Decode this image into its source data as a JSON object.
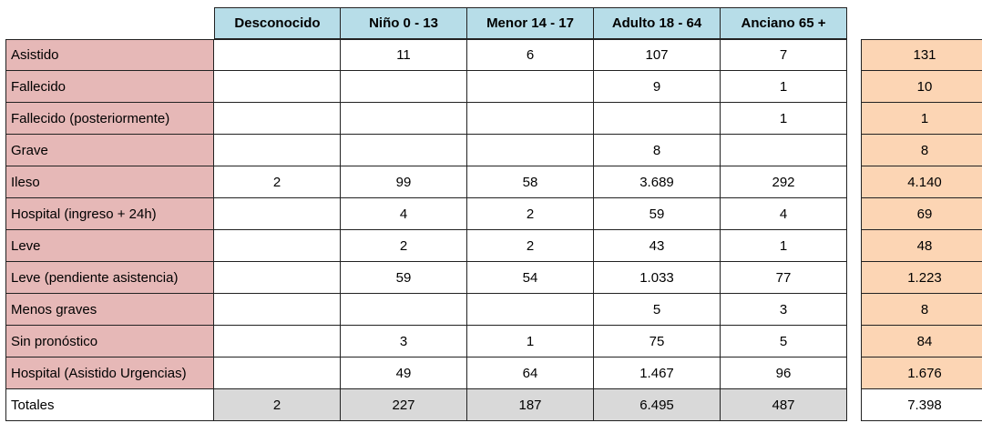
{
  "table": {
    "columns": [
      "Desconocido",
      "Niño 0 - 13",
      "Menor 14 - 17",
      "Adulto 18 - 64",
      "Anciano 65 +"
    ],
    "rows": [
      {
        "label": "Asistido",
        "values": [
          "",
          "11",
          "6",
          "107",
          "7"
        ],
        "total": "131"
      },
      {
        "label": "Fallecido",
        "values": [
          "",
          "",
          "",
          "9",
          "1"
        ],
        "total": "10"
      },
      {
        "label": "Fallecido (posteriormente)",
        "values": [
          "",
          "",
          "",
          "",
          "1"
        ],
        "total": "1"
      },
      {
        "label": "Grave",
        "values": [
          "",
          "",
          "",
          "8",
          ""
        ],
        "total": "8"
      },
      {
        "label": "Ileso",
        "values": [
          "2",
          "99",
          "58",
          "3.689",
          "292"
        ],
        "total": "4.140"
      },
      {
        "label": "Hospital (ingreso + 24h)",
        "values": [
          "",
          "4",
          "2",
          "59",
          "4"
        ],
        "total": "69"
      },
      {
        "label": "Leve",
        "values": [
          "",
          "2",
          "2",
          "43",
          "1"
        ],
        "total": "48"
      },
      {
        "label": "Leve (pendiente asistencia)",
        "values": [
          "",
          "59",
          "54",
          "1.033",
          "77"
        ],
        "total": "1.223"
      },
      {
        "label": "Menos graves",
        "values": [
          "",
          "",
          "",
          "5",
          "3"
        ],
        "total": "8"
      },
      {
        "label": "Sin pronóstico",
        "values": [
          "",
          "3",
          "1",
          "75",
          "5"
        ],
        "total": "84"
      },
      {
        "label": "Hospital (Asistido Urgencias)",
        "values": [
          "",
          "49",
          "64",
          "1.467",
          "96"
        ],
        "total": "1.676"
      }
    ],
    "footer": {
      "label": "Totales",
      "values": [
        "2",
        "227",
        "187",
        "6.495",
        "487"
      ],
      "total": "7.398"
    }
  },
  "colors": {
    "header_bg": "#b7dde8",
    "row_label_bg": "#e6b8b7",
    "row_total_bg": "#fcd5b4",
    "footer_bg": "#d9d9d9"
  }
}
